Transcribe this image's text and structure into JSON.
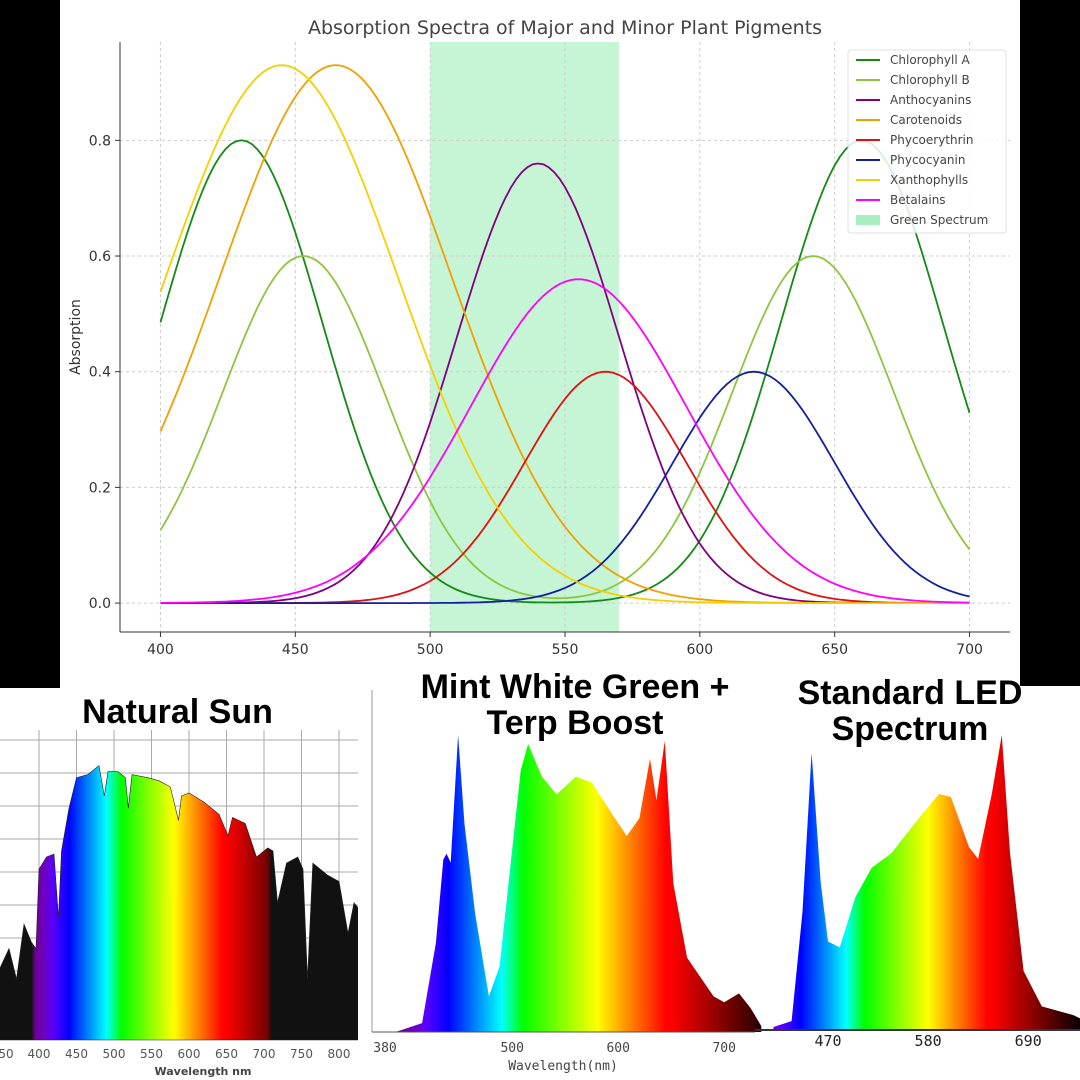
{
  "chart_data": [
    {
      "type": "line",
      "title": "Absorption Spectra of Major and Minor Plant Pigments",
      "xlabel": "",
      "ylabel": "Absorption",
      "xlim": [
        385,
        715
      ],
      "ylim": [
        -0.05,
        0.97
      ],
      "xticks": [
        400,
        450,
        500,
        550,
        600,
        650,
        700
      ],
      "yticks": [
        0.0,
        0.2,
        0.4,
        0.6,
        0.8
      ],
      "grid": true,
      "legend_position": "top-right",
      "shaded_region": {
        "name": "Green Spectrum",
        "x": [
          500,
          570
        ],
        "color": "#a8efc0"
      },
      "series": [
        {
          "name": "Chlorophyll A",
          "color": "#138a13",
          "peaks": [
            [
              430,
              0.8,
              30
            ],
            [
              660,
              0.8,
              30
            ]
          ]
        },
        {
          "name": "Chlorophyll B",
          "color": "#8cc63f",
          "peaks": [
            [
              453,
              0.6,
              30
            ],
            [
              642,
              0.6,
              30
            ]
          ]
        },
        {
          "name": "Anthocyanins",
          "color": "#800080",
          "peaks": [
            [
              540,
              0.76,
              30
            ]
          ]
        },
        {
          "name": "Carotenoids",
          "color": "#f0a000",
          "peaks": [
            [
              465,
              0.93,
              43
            ]
          ]
        },
        {
          "name": "Phycoerythrin",
          "color": "#e01010",
          "peaks": [
            [
              565,
              0.4,
              30
            ]
          ]
        },
        {
          "name": "Phycocyanin",
          "color": "#1020a0",
          "peaks": [
            [
              620,
              0.4,
              30
            ]
          ]
        },
        {
          "name": "Xanthophylls",
          "color": "#f5d000",
          "peaks": [
            [
              445,
              0.93,
              43
            ]
          ]
        },
        {
          "name": "Betalains",
          "color": "#ff00ff",
          "peaks": [
            [
              555,
              0.56,
              40
            ]
          ]
        }
      ]
    },
    {
      "type": "area",
      "title": "Natural Sun",
      "xlabel": "Wavelength nm",
      "xticks": [
        "50",
        "400",
        "450",
        "500",
        "550",
        "600",
        "650",
        "700",
        "750",
        "800"
      ],
      "grid": true,
      "points": [
        [
          345,
          0.22
        ],
        [
          360,
          0.3
        ],
        [
          370,
          0.2
        ],
        [
          380,
          0.38
        ],
        [
          390,
          0.32
        ],
        [
          396,
          0.3
        ],
        [
          400,
          0.56
        ],
        [
          410,
          0.6
        ],
        [
          420,
          0.61
        ],
        [
          426,
          0.4
        ],
        [
          430,
          0.62
        ],
        [
          440,
          0.76
        ],
        [
          450,
          0.86
        ],
        [
          465,
          0.87
        ],
        [
          480,
          0.9
        ],
        [
          487,
          0.8
        ],
        [
          492,
          0.88
        ],
        [
          505,
          0.88
        ],
        [
          515,
          0.86
        ],
        [
          519,
          0.76
        ],
        [
          524,
          0.87
        ],
        [
          545,
          0.86
        ],
        [
          560,
          0.85
        ],
        [
          575,
          0.83
        ],
        [
          586,
          0.72
        ],
        [
          590,
          0.8
        ],
        [
          600,
          0.81
        ],
        [
          620,
          0.78
        ],
        [
          640,
          0.74
        ],
        [
          652,
          0.67
        ],
        [
          658,
          0.73
        ],
        [
          675,
          0.71
        ],
        [
          690,
          0.6
        ],
        [
          705,
          0.63
        ],
        [
          712,
          0.62
        ],
        [
          718,
          0.45
        ],
        [
          730,
          0.58
        ],
        [
          745,
          0.6
        ],
        [
          752,
          0.56
        ],
        [
          758,
          0.2
        ],
        [
          765,
          0.58
        ],
        [
          785,
          0.54
        ],
        [
          800,
          0.52
        ],
        [
          812,
          0.35
        ],
        [
          820,
          0.45
        ],
        [
          830,
          0.42
        ]
      ]
    },
    {
      "type": "area",
      "title": "Mint White Green + Terp Boost",
      "xlabel": "Wavelength(nm)",
      "xticks": [
        "380",
        "500",
        "600",
        "700"
      ],
      "points": [
        [
          390,
          0
        ],
        [
          415,
          0.03
        ],
        [
          428,
          0.3
        ],
        [
          435,
          0.58
        ],
        [
          438,
          0.6
        ],
        [
          442,
          0.57
        ],
        [
          449,
          1.0
        ],
        [
          455,
          0.7
        ],
        [
          465,
          0.4
        ],
        [
          478,
          0.12
        ],
        [
          488,
          0.22
        ],
        [
          498,
          0.55
        ],
        [
          508,
          0.88
        ],
        [
          515,
          0.97
        ],
        [
          528,
          0.86
        ],
        [
          542,
          0.8
        ],
        [
          560,
          0.86
        ],
        [
          575,
          0.84
        ],
        [
          595,
          0.73
        ],
        [
          608,
          0.66
        ],
        [
          620,
          0.72
        ],
        [
          630,
          0.92
        ],
        [
          636,
          0.78
        ],
        [
          644,
          0.98
        ],
        [
          652,
          0.5
        ],
        [
          665,
          0.25
        ],
        [
          690,
          0.12
        ],
        [
          700,
          0.1
        ],
        [
          714,
          0.13
        ],
        [
          725,
          0.08
        ],
        [
          735,
          0.02
        ]
      ]
    },
    {
      "type": "area",
      "title": "Standard LED Spectrum",
      "xlabel": "",
      "xticks": [
        "470",
        "580",
        "690"
      ],
      "points": [
        [
          410,
          0.01
        ],
        [
          430,
          0.03
        ],
        [
          442,
          0.4
        ],
        [
          452,
          0.94
        ],
        [
          462,
          0.5
        ],
        [
          470,
          0.3
        ],
        [
          483,
          0.28
        ],
        [
          500,
          0.45
        ],
        [
          518,
          0.55
        ],
        [
          540,
          0.6
        ],
        [
          565,
          0.7
        ],
        [
          592,
          0.8
        ],
        [
          605,
          0.79
        ],
        [
          625,
          0.62
        ],
        [
          635,
          0.58
        ],
        [
          650,
          0.8
        ],
        [
          661,
          1.0
        ],
        [
          670,
          0.6
        ],
        [
          685,
          0.2
        ],
        [
          705,
          0.08
        ],
        [
          740,
          0.05
        ],
        [
          760,
          0.02
        ]
      ]
    }
  ]
}
